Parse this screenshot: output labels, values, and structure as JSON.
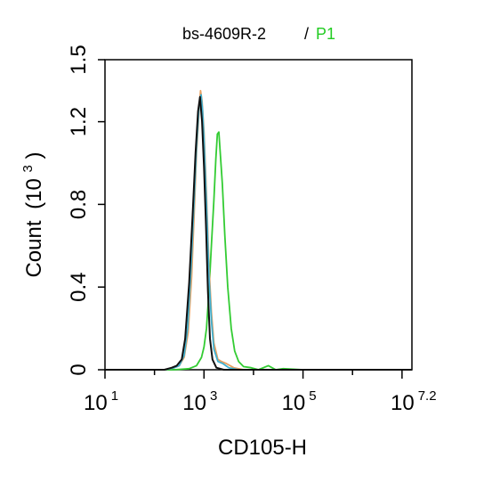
{
  "chart_data": {
    "type": "line",
    "title": "bs-4609R-2",
    "title_separator": "/",
    "title_gate": "P1",
    "xlabel": "CD105-H",
    "ylabel_main": "Count",
    "ylabel_unit_open": "(10",
    "ylabel_unit_exp": "3",
    "ylabel_unit_close": ")",
    "x_scale": "log",
    "xlim_exp": [
      1,
      7.2
    ],
    "ylim": [
      0,
      1.5
    ],
    "x_ticks": [
      {
        "base": "10",
        "exp": "1",
        "value_exp": 1
      },
      {
        "base": "10",
        "exp": "3",
        "value_exp": 3
      },
      {
        "base": "10",
        "exp": "5",
        "value_exp": 5
      },
      {
        "base": "10",
        "exp": "7.2",
        "value_exp": 7.2
      }
    ],
    "y_ticks": [
      {
        "label": "0",
        "value": 0
      },
      {
        "label": "0.4",
        "value": 0.4
      },
      {
        "label": "0.8",
        "value": 0.8
      },
      {
        "label": "1.2",
        "value": 1.2
      },
      {
        "label": "1.5",
        "value": 1.5
      }
    ],
    "grid": false,
    "series": [
      {
        "color": "#33cc33",
        "points": [
          [
            1.0,
            0
          ],
          [
            2.4,
            0
          ],
          [
            2.7,
            0.005
          ],
          [
            2.85,
            0.02
          ],
          [
            2.95,
            0.06
          ],
          [
            3.0,
            0.11
          ],
          [
            3.05,
            0.2
          ],
          [
            3.1,
            0.38
          ],
          [
            3.15,
            0.6
          ],
          [
            3.2,
            0.82
          ],
          [
            3.24,
            1.02
          ],
          [
            3.27,
            1.14
          ],
          [
            3.3,
            1.15
          ],
          [
            3.33,
            1.04
          ],
          [
            3.37,
            0.9
          ],
          [
            3.42,
            0.65
          ],
          [
            3.48,
            0.4
          ],
          [
            3.55,
            0.2
          ],
          [
            3.62,
            0.09
          ],
          [
            3.7,
            0.04
          ],
          [
            3.8,
            0.015
          ],
          [
            3.95,
            0.01
          ],
          [
            4.1,
            0.0
          ],
          [
            4.3,
            0.02
          ],
          [
            4.45,
            0.0
          ],
          [
            4.6,
            0.005
          ],
          [
            5.0,
            0
          ],
          [
            7.2,
            0
          ]
        ]
      },
      {
        "color": "#e8a060",
        "points": [
          [
            1.0,
            0
          ],
          [
            2.2,
            0
          ],
          [
            2.4,
            0.01
          ],
          [
            2.5,
            0.02
          ],
          [
            2.6,
            0.06
          ],
          [
            2.68,
            0.18
          ],
          [
            2.75,
            0.45
          ],
          [
            2.8,
            0.75
          ],
          [
            2.85,
            1.05
          ],
          [
            2.9,
            1.25
          ],
          [
            2.93,
            1.35
          ],
          [
            2.96,
            1.3
          ],
          [
            3.0,
            1.15
          ],
          [
            3.05,
            0.85
          ],
          [
            3.1,
            0.5
          ],
          [
            3.15,
            0.28
          ],
          [
            3.2,
            0.13
          ],
          [
            3.28,
            0.05
          ],
          [
            3.35,
            0.04
          ],
          [
            3.45,
            0.03
          ],
          [
            3.6,
            0.01
          ],
          [
            3.8,
            0
          ],
          [
            7.2,
            0
          ]
        ]
      },
      {
        "color": "#40b0d0",
        "points": [
          [
            1.0,
            0
          ],
          [
            2.2,
            0
          ],
          [
            2.4,
            0.01
          ],
          [
            2.5,
            0.02
          ],
          [
            2.6,
            0.07
          ],
          [
            2.67,
            0.2
          ],
          [
            2.74,
            0.5
          ],
          [
            2.8,
            0.82
          ],
          [
            2.85,
            1.08
          ],
          [
            2.9,
            1.27
          ],
          [
            2.94,
            1.33
          ],
          [
            2.97,
            1.26
          ],
          [
            3.0,
            1.12
          ],
          [
            3.05,
            0.8
          ],
          [
            3.1,
            0.45
          ],
          [
            3.15,
            0.24
          ],
          [
            3.2,
            0.1
          ],
          [
            3.28,
            0.04
          ],
          [
            3.38,
            0.03
          ],
          [
            3.5,
            0.01
          ],
          [
            3.7,
            0
          ],
          [
            7.2,
            0
          ]
        ]
      },
      {
        "color": "#111111",
        "points": [
          [
            1.0,
            0
          ],
          [
            2.2,
            0
          ],
          [
            2.35,
            0.01
          ],
          [
            2.45,
            0.02
          ],
          [
            2.55,
            0.05
          ],
          [
            2.62,
            0.15
          ],
          [
            2.7,
            0.42
          ],
          [
            2.77,
            0.75
          ],
          [
            2.83,
            1.05
          ],
          [
            2.88,
            1.25
          ],
          [
            2.92,
            1.32
          ],
          [
            2.96,
            1.2
          ],
          [
            3.0,
            0.98
          ],
          [
            3.04,
            0.7
          ],
          [
            3.08,
            0.38
          ],
          [
            3.12,
            0.15
          ],
          [
            3.17,
            0.05
          ],
          [
            3.25,
            0.01
          ],
          [
            3.4,
            0
          ],
          [
            7.2,
            0
          ]
        ]
      }
    ]
  }
}
